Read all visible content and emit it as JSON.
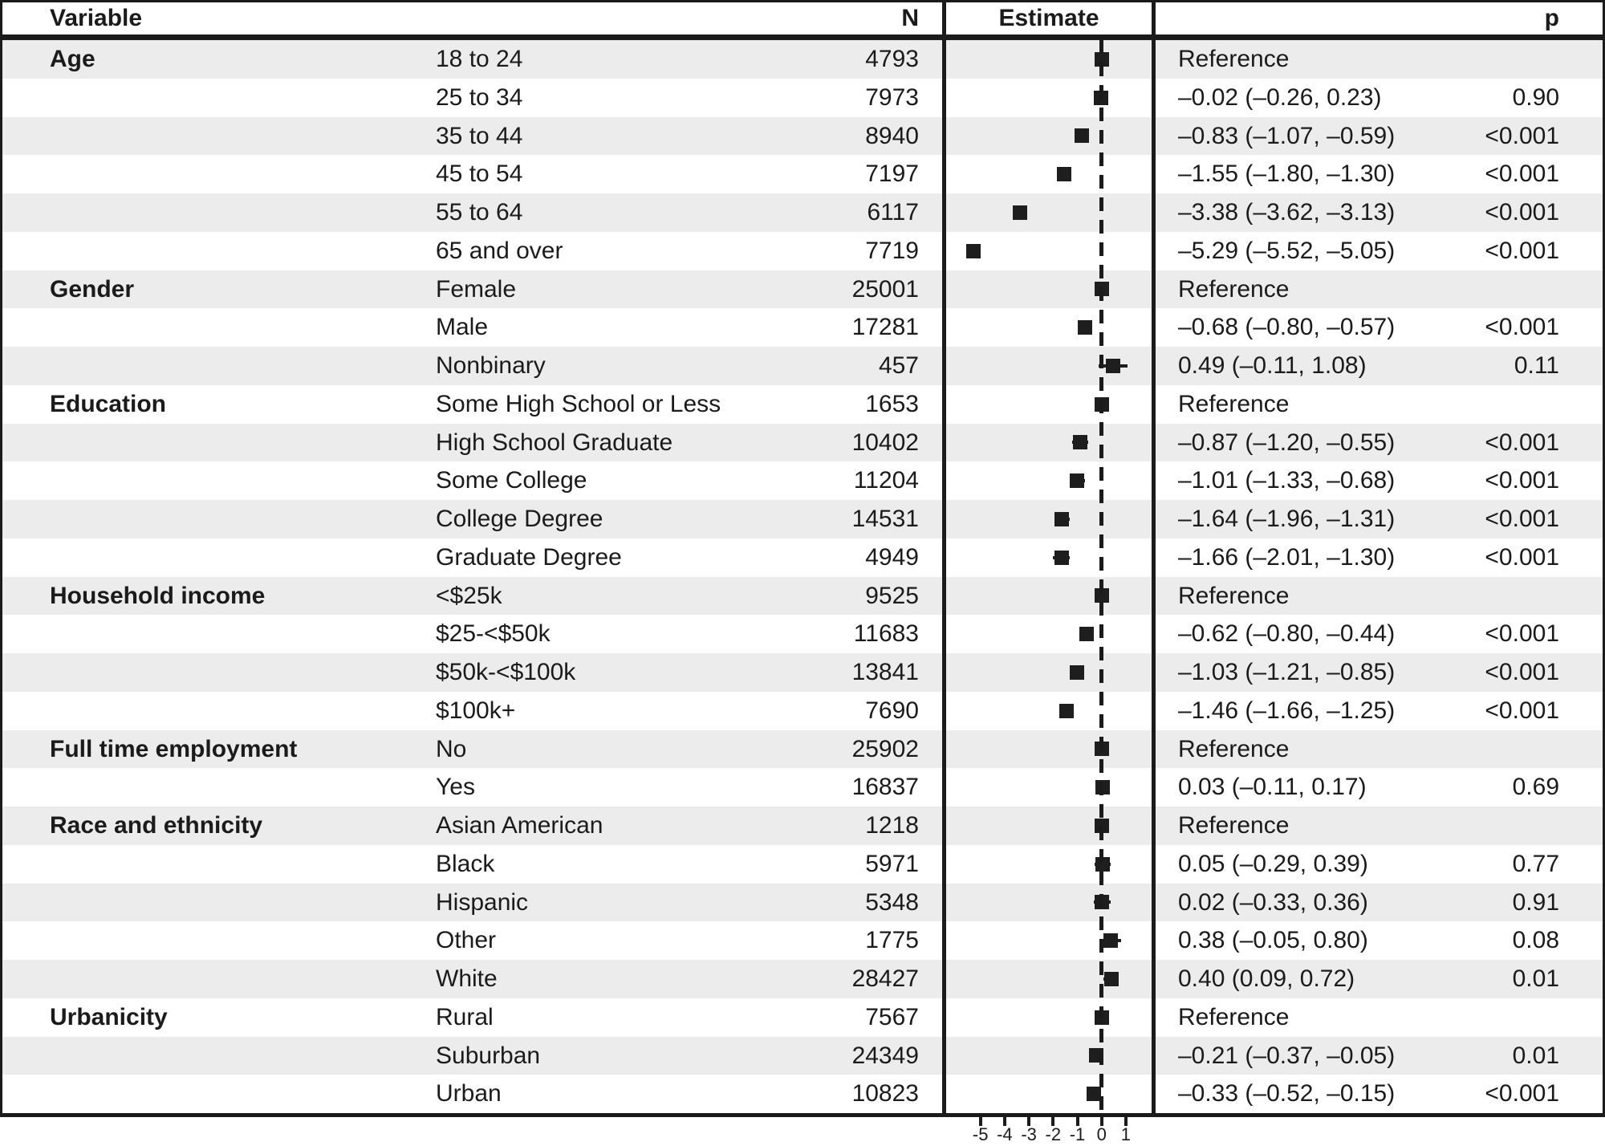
{
  "header": {
    "variable": "Variable",
    "n": "N",
    "estimate": "Estimate",
    "p": "p"
  },
  "colors": {
    "stripe": "#ececec",
    "ink": "#1b1b1b",
    "marker": "#1e1e1e",
    "background": "#ffffff"
  },
  "chart_data": {
    "type": "scatter",
    "title": "",
    "xlabel": "Estimate",
    "xlim": [
      -6.5,
      2.1
    ],
    "x_ticks": [
      -5,
      -4,
      -3,
      -2,
      -1,
      0,
      1
    ],
    "x_tick_labels": [
      "-5",
      "-4",
      "-3",
      "-2",
      "-1",
      "0",
      "1"
    ],
    "zero_reference_line": 0,
    "legend": "none",
    "grid": false,
    "rows": [
      {
        "group": "Age",
        "category": "18 to 24",
        "n": "4793",
        "est": 0,
        "lo": null,
        "hi": null,
        "est_text": "Reference",
        "p": ""
      },
      {
        "group": "",
        "category": "25 to 34",
        "n": "7973",
        "est": -0.02,
        "lo": -0.26,
        "hi": 0.23,
        "est_text": "–0.02 (–0.26, 0.23)",
        "p": "0.90"
      },
      {
        "group": "",
        "category": "35 to 44",
        "n": "8940",
        "est": -0.83,
        "lo": -1.07,
        "hi": -0.59,
        "est_text": "–0.83 (–1.07, –0.59)",
        "p": "<0.001"
      },
      {
        "group": "",
        "category": "45 to 54",
        "n": "7197",
        "est": -1.55,
        "lo": -1.8,
        "hi": -1.3,
        "est_text": "–1.55 (–1.80, –1.30)",
        "p": "<0.001"
      },
      {
        "group": "",
        "category": "55 to 64",
        "n": "6117",
        "est": -3.38,
        "lo": -3.62,
        "hi": -3.13,
        "est_text": "–3.38 (–3.62, –3.13)",
        "p": "<0.001"
      },
      {
        "group": "",
        "category": "65 and over",
        "n": "7719",
        "est": -5.29,
        "lo": -5.52,
        "hi": -5.05,
        "est_text": "–5.29 (–5.52, –5.05)",
        "p": "<0.001"
      },
      {
        "group": "Gender",
        "category": "Female",
        "n": "25001",
        "est": 0,
        "lo": null,
        "hi": null,
        "est_text": "Reference",
        "p": ""
      },
      {
        "group": "",
        "category": "Male",
        "n": "17281",
        "est": -0.68,
        "lo": -0.8,
        "hi": -0.57,
        "est_text": "–0.68 (–0.80, –0.57)",
        "p": "<0.001"
      },
      {
        "group": "",
        "category": "Nonbinary",
        "n": "457",
        "est": 0.49,
        "lo": -0.11,
        "hi": 1.08,
        "est_text": "0.49 (–0.11, 1.08)",
        "p": "0.11"
      },
      {
        "group": "Education",
        "category": "Some High School or Less",
        "n": "1653",
        "est": 0,
        "lo": null,
        "hi": null,
        "est_text": "Reference",
        "p": ""
      },
      {
        "group": "",
        "category": "High School Graduate",
        "n": "10402",
        "est": -0.87,
        "lo": -1.2,
        "hi": -0.55,
        "est_text": "–0.87 (–1.20, –0.55)",
        "p": "<0.001"
      },
      {
        "group": "",
        "category": "Some College",
        "n": "11204",
        "est": -1.01,
        "lo": -1.33,
        "hi": -0.68,
        "est_text": "–1.01 (–1.33, –0.68)",
        "p": "<0.001"
      },
      {
        "group": "",
        "category": "College Degree",
        "n": "14531",
        "est": -1.64,
        "lo": -1.96,
        "hi": -1.31,
        "est_text": "–1.64 (–1.96, –1.31)",
        "p": "<0.001"
      },
      {
        "group": "",
        "category": "Graduate Degree",
        "n": "4949",
        "est": -1.66,
        "lo": -2.01,
        "hi": -1.3,
        "est_text": "–1.66 (–2.01, –1.30)",
        "p": "<0.001"
      },
      {
        "group": "Household income",
        "category": "<$25k",
        "n": "9525",
        "est": 0,
        "lo": null,
        "hi": null,
        "est_text": "Reference",
        "p": ""
      },
      {
        "group": "",
        "category": "$25-<$50k",
        "n": "11683",
        "est": -0.62,
        "lo": -0.8,
        "hi": -0.44,
        "est_text": "–0.62 (–0.80, –0.44)",
        "p": "<0.001"
      },
      {
        "group": "",
        "category": "$50k-<$100k",
        "n": "13841",
        "est": -1.03,
        "lo": -1.21,
        "hi": -0.85,
        "est_text": "–1.03 (–1.21, –0.85)",
        "p": "<0.001"
      },
      {
        "group": "",
        "category": "$100k+",
        "n": "7690",
        "est": -1.46,
        "lo": -1.66,
        "hi": -1.25,
        "est_text": "–1.46 (–1.66, –1.25)",
        "p": "<0.001"
      },
      {
        "group": "Full time employment",
        "category": "No",
        "n": "25902",
        "est": 0,
        "lo": null,
        "hi": null,
        "est_text": "Reference",
        "p": ""
      },
      {
        "group": "",
        "category": "Yes",
        "n": "16837",
        "est": 0.03,
        "lo": -0.11,
        "hi": 0.17,
        "est_text": "0.03 (–0.11, 0.17)",
        "p": "0.69"
      },
      {
        "group": "Race and ethnicity",
        "category": "Asian American",
        "n": "1218",
        "est": 0,
        "lo": null,
        "hi": null,
        "est_text": "Reference",
        "p": ""
      },
      {
        "group": "",
        "category": "Black",
        "n": "5971",
        "est": 0.05,
        "lo": -0.29,
        "hi": 0.39,
        "est_text": "0.05 (–0.29, 0.39)",
        "p": "0.77"
      },
      {
        "group": "",
        "category": "Hispanic",
        "n": "5348",
        "est": 0.02,
        "lo": -0.33,
        "hi": 0.36,
        "est_text": "0.02 (–0.33, 0.36)",
        "p": "0.91"
      },
      {
        "group": "",
        "category": "Other",
        "n": "1775",
        "est": 0.38,
        "lo": -0.05,
        "hi": 0.8,
        "est_text": "0.38 (–0.05, 0.80)",
        "p": "0.08"
      },
      {
        "group": "",
        "category": "White",
        "n": "28427",
        "est": 0.4,
        "lo": 0.09,
        "hi": 0.72,
        "est_text": "0.40 (0.09, 0.72)",
        "p": "0.01"
      },
      {
        "group": "Urbanicity",
        "category": "Rural",
        "n": "7567",
        "est": 0,
        "lo": null,
        "hi": null,
        "est_text": "Reference",
        "p": ""
      },
      {
        "group": "",
        "category": "Suburban",
        "n": "24349",
        "est": -0.21,
        "lo": -0.37,
        "hi": -0.05,
        "est_text": "–0.21 (–0.37, –0.05)",
        "p": "0.01"
      },
      {
        "group": "",
        "category": "Urban",
        "n": "10823",
        "est": -0.33,
        "lo": -0.52,
        "hi": -0.15,
        "est_text": "–0.33 (–0.52, –0.15)",
        "p": "<0.001"
      }
    ]
  }
}
